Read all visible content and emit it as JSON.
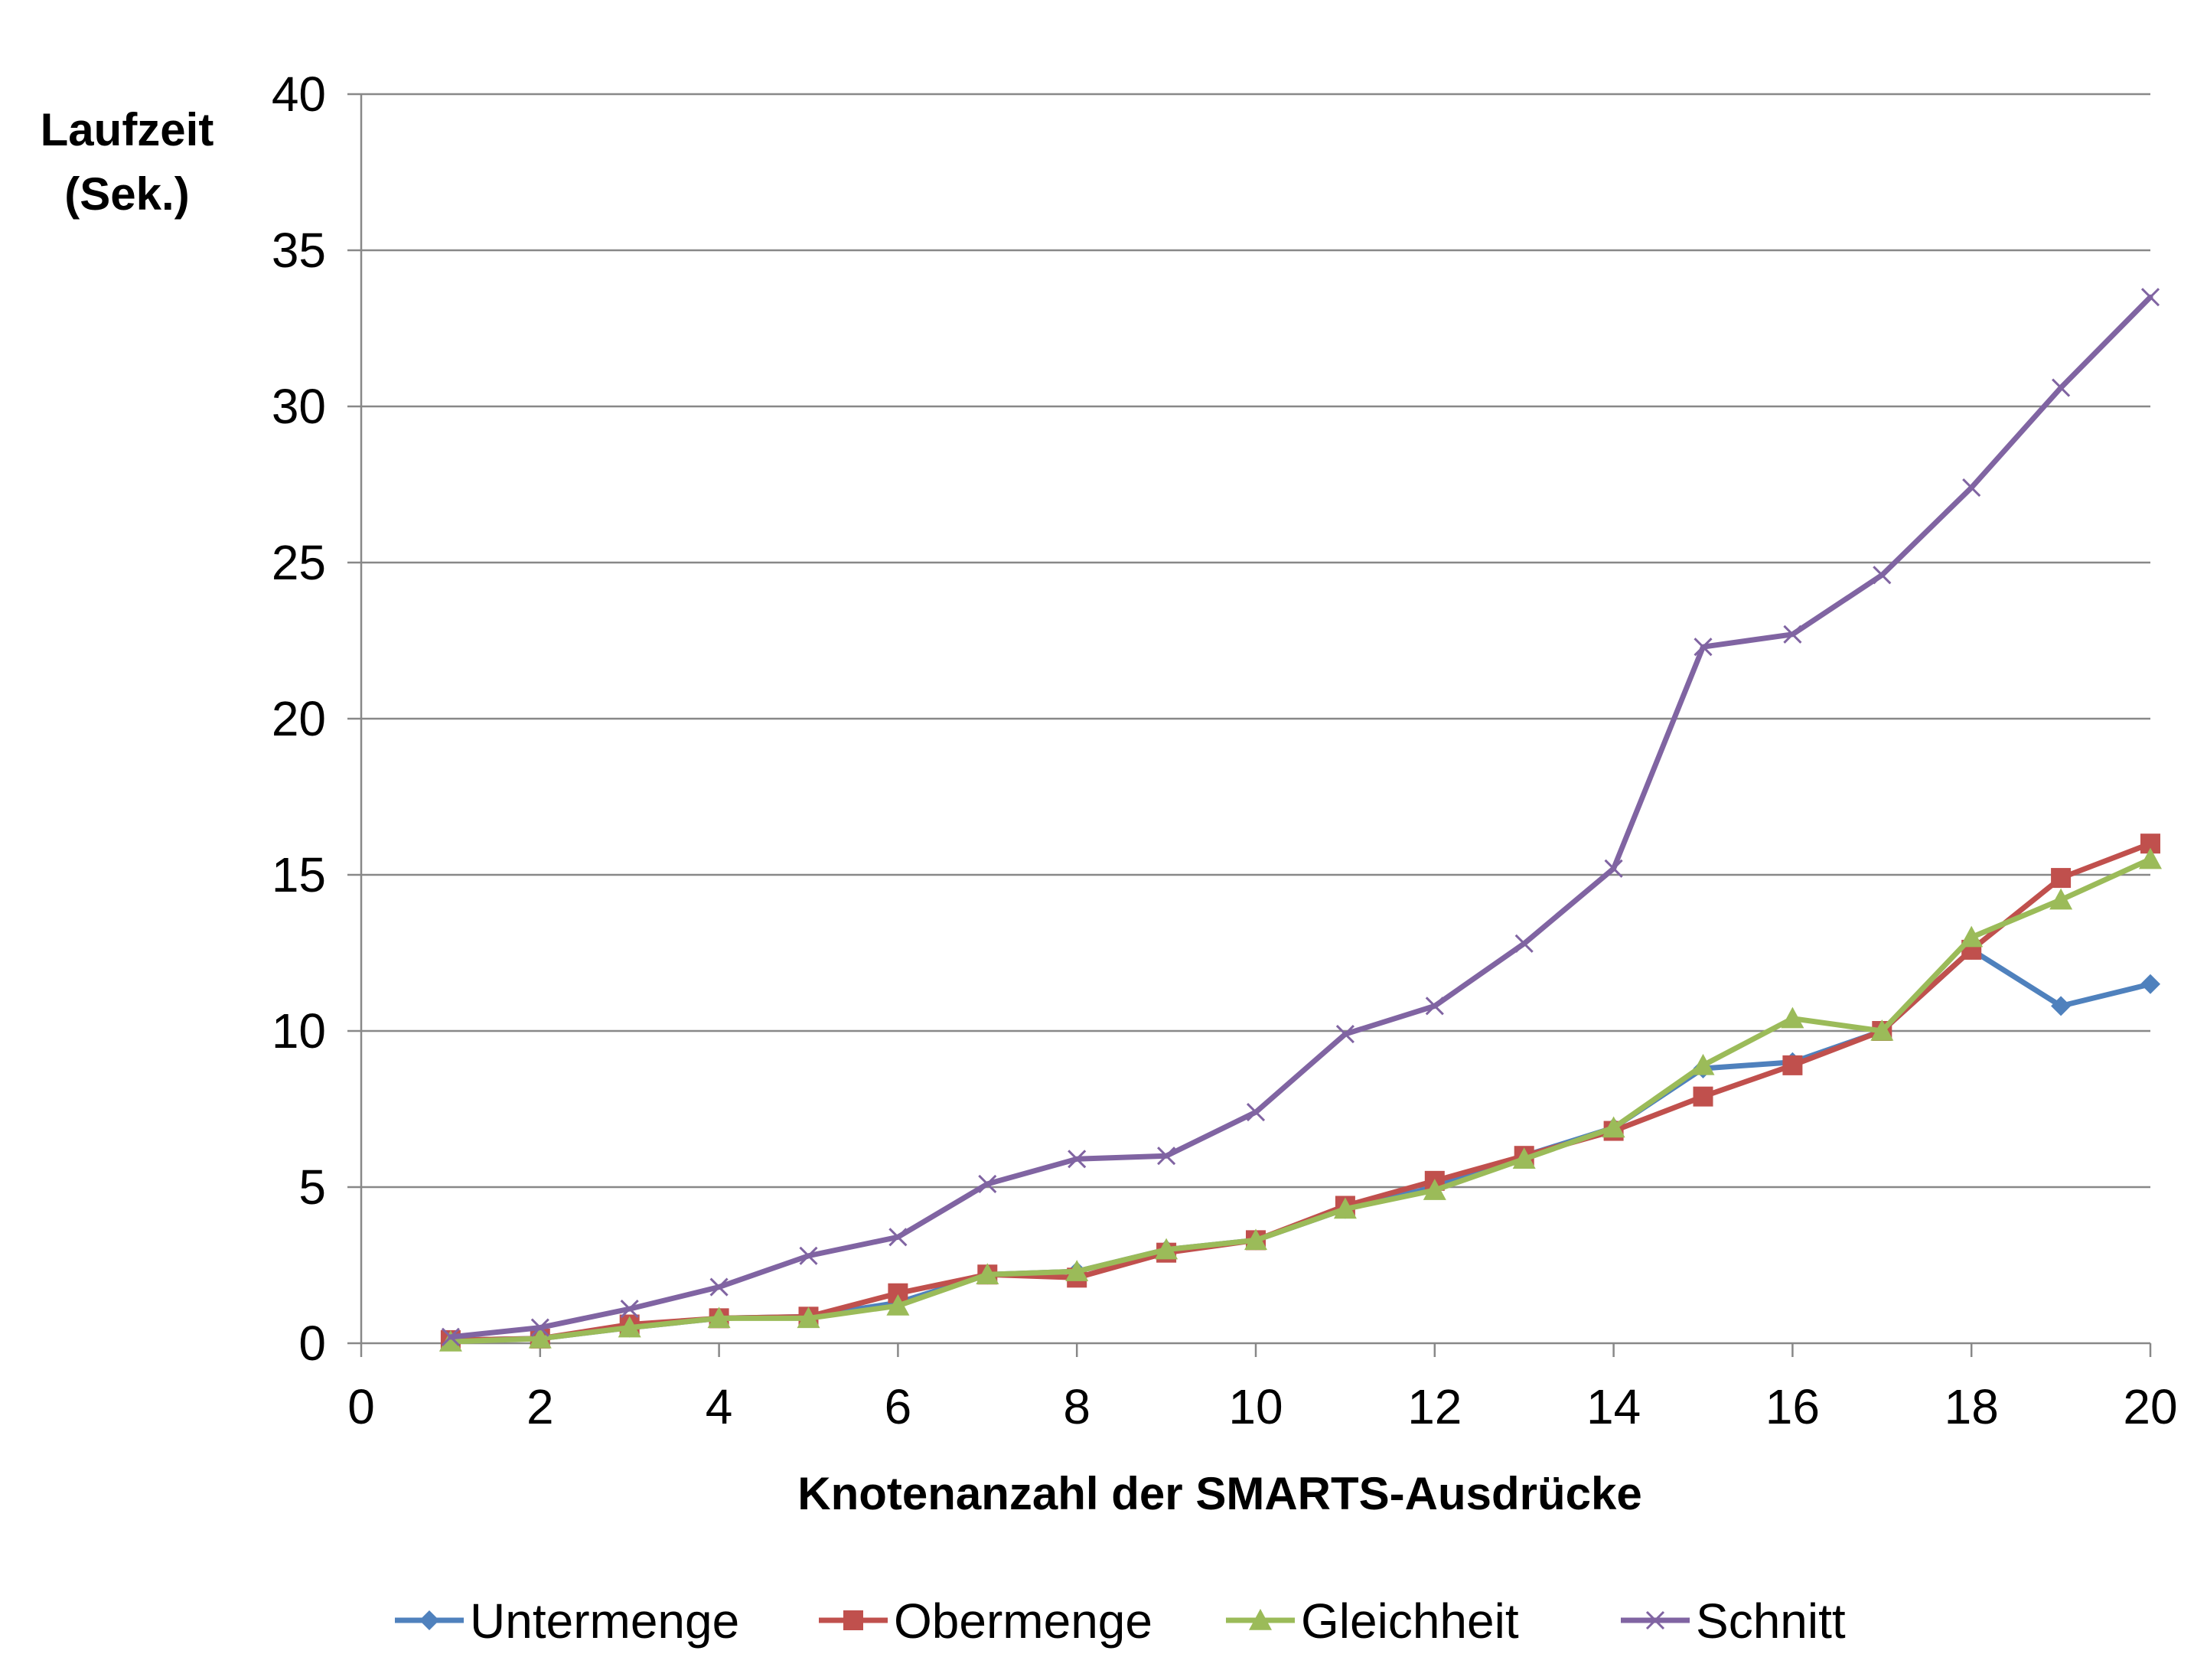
{
  "chart_data": {
    "type": "line",
    "title": "",
    "ylabel": [
      "Laufzeit",
      "(Sek.)"
    ],
    "xlabel": "Knotenanzahl der SMARTS-Ausdrücke",
    "xlim": [
      0,
      20
    ],
    "ylim": [
      0,
      40
    ],
    "xticks": [
      0,
      2,
      4,
      6,
      8,
      10,
      12,
      14,
      16,
      18,
      20
    ],
    "yticks": [
      0,
      5,
      10,
      15,
      20,
      25,
      30,
      35,
      40
    ],
    "grid": "horizontal",
    "legend": "bottom",
    "x": [
      1,
      2,
      3,
      4,
      5,
      6,
      7,
      8,
      9,
      10,
      11,
      12,
      13,
      14,
      15,
      16,
      17,
      18,
      19,
      20
    ],
    "series": [
      {
        "name": "Untermenge",
        "color": "#4F81BD",
        "marker": "diamond",
        "values": [
          0.1,
          0.15,
          0.5,
          0.8,
          0.85,
          1.3,
          2.2,
          2.3,
          3.0,
          3.3,
          4.3,
          5.0,
          6.0,
          6.9,
          8.8,
          9.0,
          10.0,
          12.6,
          10.8,
          11.5
        ]
      },
      {
        "name": "Obermenge",
        "color": "#C0504D",
        "marker": "square",
        "values": [
          0.1,
          0.15,
          0.6,
          0.8,
          0.85,
          1.6,
          2.2,
          2.1,
          2.9,
          3.3,
          4.4,
          5.2,
          6.0,
          6.8,
          7.9,
          8.9,
          10.0,
          12.6,
          14.9,
          16.0
        ]
      },
      {
        "name": "Gleichheit",
        "color": "#9BBB59",
        "marker": "triangle",
        "values": [
          0.05,
          0.15,
          0.5,
          0.8,
          0.8,
          1.2,
          2.2,
          2.3,
          3.0,
          3.3,
          4.3,
          4.9,
          5.9,
          6.9,
          8.9,
          10.4,
          10.0,
          13.0,
          14.2,
          15.5
        ]
      },
      {
        "name": "Schnitt",
        "color": "#8064A2",
        "marker": "x",
        "values": [
          0.2,
          0.5,
          1.1,
          1.8,
          2.8,
          3.4,
          5.1,
          5.9,
          6.0,
          7.4,
          9.9,
          10.8,
          12.8,
          15.2,
          22.3,
          22.7,
          24.6,
          27.4,
          30.6,
          33.5
        ]
      }
    ]
  }
}
